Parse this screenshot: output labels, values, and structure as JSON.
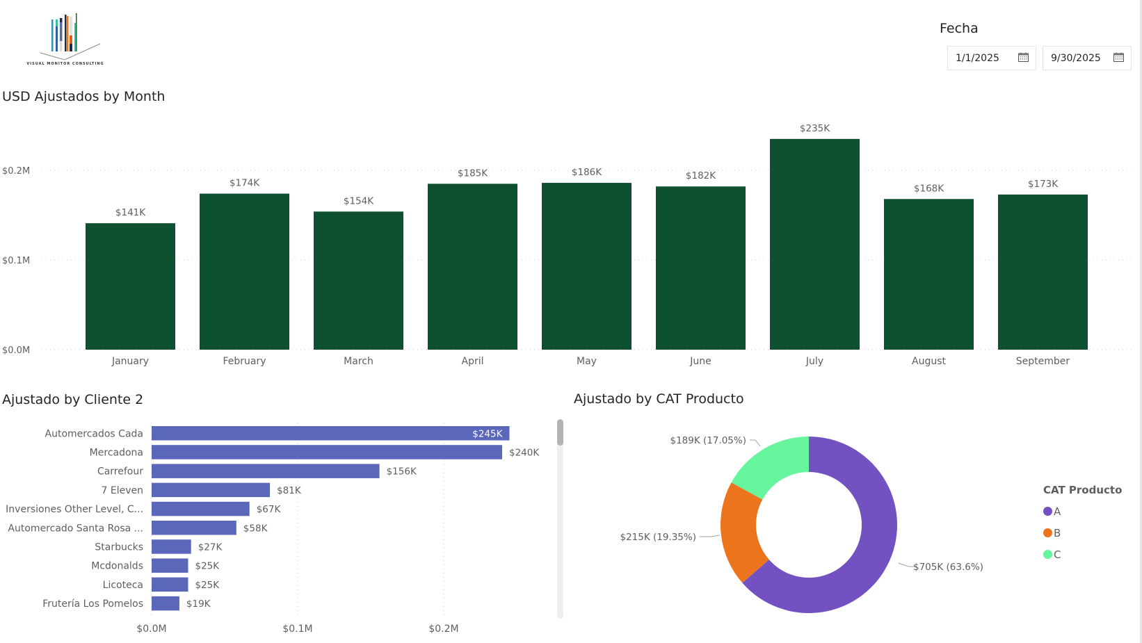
{
  "logo": {
    "text": "VISUAL MONITOR CONSULTING"
  },
  "filter": {
    "label": "Fecha",
    "start_date": "1/1/2025",
    "end_date": "9/30/2025",
    "icon": "calendar-icon"
  },
  "colors": {
    "monthly_bar": "#0e5130",
    "client_bar": "#5b67b8",
    "cat_A": "#7451c1",
    "cat_B": "#ec741d",
    "cat_C": "#66f49c",
    "gridline": "#c8c8c8",
    "label": "#605e5c"
  },
  "chart_data": [
    {
      "type": "bar",
      "title": "USD Ajustados by Month",
      "categories": [
        "January",
        "February",
        "March",
        "April",
        "May",
        "June",
        "July",
        "August",
        "September"
      ],
      "values": [
        141,
        174,
        154,
        185,
        186,
        182,
        235,
        168,
        173
      ],
      "value_unit": "K USD",
      "data_labels": [
        "$141K",
        "$174K",
        "$154K",
        "$185K",
        "$186K",
        "$182K",
        "$235K",
        "$168K",
        "$173K"
      ],
      "ylabel": "",
      "xlabel": "",
      "y_ticks": [
        "$0.0M",
        "$0.1M",
        "$0.2M"
      ],
      "y_tick_values": [
        0,
        100,
        200
      ],
      "ylim": [
        0,
        235
      ],
      "grid": true
    },
    {
      "type": "bar",
      "orientation": "horizontal",
      "title": "Ajustado by Cliente 2",
      "categories": [
        "Automercados Cada",
        "Mercadona",
        "Carrefour",
        "7 Eleven",
        "Inversiones Other Level, C...",
        "Automercado Santa Rosa ...",
        "Starbucks",
        "Mcdonalds",
        "Licoteca",
        "Frutería Los Pomelos"
      ],
      "values": [
        245,
        240,
        156,
        81,
        67,
        58,
        27,
        25,
        25,
        19
      ],
      "value_unit": "K USD",
      "data_labels": [
        "$245K",
        "$240K",
        "$156K",
        "$81K",
        "$67K",
        "$58K",
        "$27K",
        "$25K",
        "$25K",
        "$19K"
      ],
      "x_ticks": [
        "$0.0M",
        "$0.1M",
        "$0.2M"
      ],
      "x_tick_values": [
        0,
        100,
        200
      ],
      "xlim": [
        0,
        260
      ],
      "grid": true,
      "scrollbar": true
    },
    {
      "type": "pie",
      "variant": "donut",
      "title": "Ajustado by CAT Producto",
      "legend_title": "CAT Producto",
      "legend_position": "right",
      "slices": [
        {
          "label": "A",
          "value": 705,
          "percent": 63.6,
          "data_label": "$705K (63.6%)"
        },
        {
          "label": "B",
          "value": 215,
          "percent": 19.35,
          "data_label": "$215K (19.35%)"
        },
        {
          "label": "C",
          "value": 189,
          "percent": 17.05,
          "data_label": "$189K (17.05%)"
        }
      ]
    }
  ]
}
